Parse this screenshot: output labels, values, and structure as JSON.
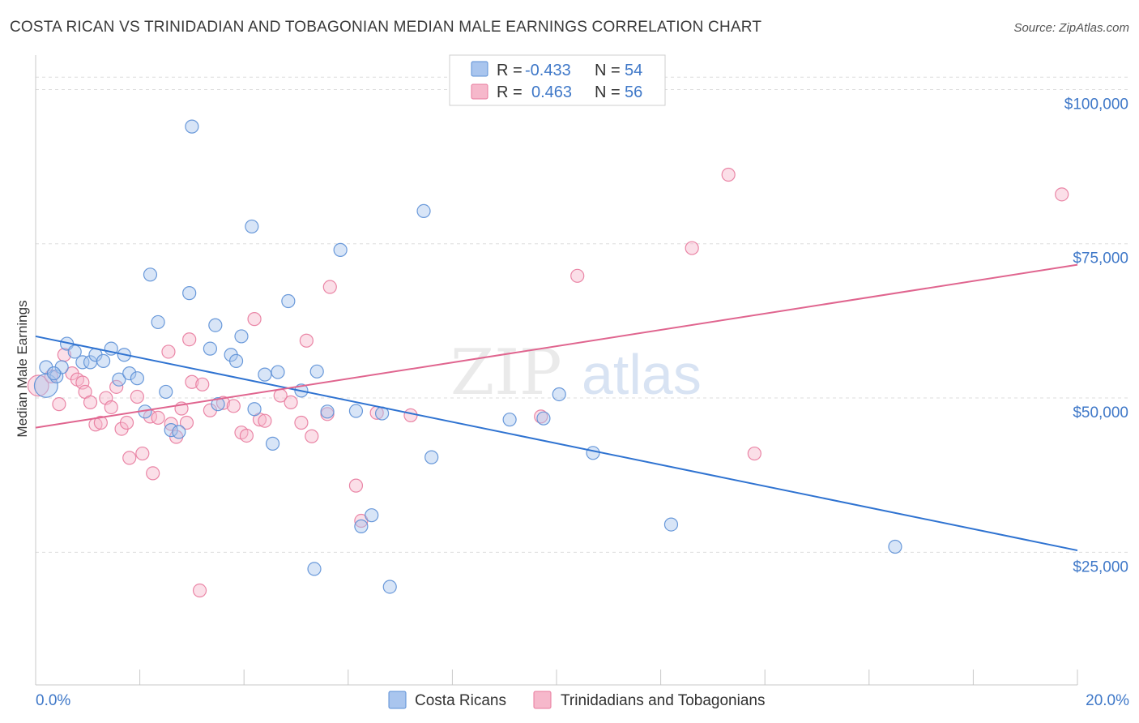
{
  "title": "COSTA RICAN VS TRINIDADIAN AND TOBAGONIAN MEDIAN MALE EARNINGS CORRELATION CHART",
  "source": "Source: ZipAtlas.com",
  "watermark": {
    "zip": "ZIP",
    "atlas": "atlas"
  },
  "colors": {
    "blue_fill": "#a9c5ee",
    "blue_stroke": "#5b8fd6",
    "blue_line": "#2f73d1",
    "pink_fill": "#f6b8cb",
    "pink_stroke": "#e87a9d",
    "pink_line": "#e0658f",
    "tick_text": "#3f78c8",
    "grid": "#dddddd"
  },
  "legend": {
    "rows": [
      {
        "r_label": "R =",
        "r_value": "-0.433",
        "n_label": "N =",
        "n_value": "54"
      },
      {
        "r_label": "R =",
        "r_value": "0.463",
        "n_label": "N =",
        "n_value": "56"
      }
    ]
  },
  "bottom_legend": {
    "items": [
      "Costa Ricans",
      "Trinidadians and Tobagonians"
    ]
  },
  "chart_data": {
    "type": "scatter",
    "title": "COSTA RICAN VS TRINIDADIAN AND TOBAGONIAN MEDIAN MALE EARNINGS CORRELATION CHART",
    "xlabel": "",
    "ylabel": "Median Male Earnings",
    "xlim": [
      0,
      20
    ],
    "ylim": [
      3500,
      104000
    ],
    "x_tick_labels": [
      "0.0%",
      "20.0%"
    ],
    "y_ticks": [
      25000,
      50000,
      75000,
      100000
    ],
    "y_tick_labels": [
      "$25,000",
      "$50,000",
      "$75,000",
      "$100,000"
    ],
    "grid": "horizontal dashed",
    "legend_position": "top-center",
    "series": [
      {
        "name": "Costa Ricans",
        "trend": {
          "x": [
            0,
            20
          ],
          "y": [
            60000,
            25300
          ]
        },
        "points": [
          [
            0.2,
            52000,
            1.8
          ],
          [
            0.2,
            55000,
            1
          ],
          [
            0.4,
            53500,
            1
          ],
          [
            0.5,
            55000,
            1
          ],
          [
            0.6,
            58800,
            1
          ],
          [
            0.75,
            57500,
            1
          ],
          [
            0.9,
            55800,
            1
          ],
          [
            1.05,
            55800,
            1
          ],
          [
            1.15,
            57000,
            1
          ],
          [
            1.3,
            56000,
            1
          ],
          [
            1.45,
            58000,
            1
          ],
          [
            1.6,
            53000,
            1
          ],
          [
            1.7,
            57000,
            1
          ],
          [
            1.8,
            54000,
            1
          ],
          [
            1.95,
            53200,
            1
          ],
          [
            2.1,
            47800,
            1
          ],
          [
            2.2,
            70000,
            1
          ],
          [
            2.35,
            62300,
            1
          ],
          [
            2.5,
            51000,
            1
          ],
          [
            2.6,
            44800,
            1
          ],
          [
            2.75,
            44500,
            1
          ],
          [
            2.95,
            67000,
            1
          ],
          [
            3.0,
            94000,
            1
          ],
          [
            3.35,
            58000,
            1
          ],
          [
            3.45,
            61800,
            1
          ],
          [
            3.5,
            49000,
            1
          ],
          [
            3.75,
            57000,
            1
          ],
          [
            3.85,
            56000,
            1
          ],
          [
            3.95,
            60000,
            1
          ],
          [
            4.15,
            77800,
            1
          ],
          [
            4.2,
            48200,
            1
          ],
          [
            4.4,
            53800,
            1
          ],
          [
            4.55,
            42600,
            1
          ],
          [
            4.65,
            54200,
            1
          ],
          [
            4.85,
            65700,
            1
          ],
          [
            5.1,
            51200,
            1
          ],
          [
            5.35,
            22300,
            1
          ],
          [
            5.4,
            54300,
            1
          ],
          [
            5.6,
            47800,
            1
          ],
          [
            5.85,
            74000,
            1
          ],
          [
            6.15,
            47900,
            1
          ],
          [
            6.25,
            29200,
            1
          ],
          [
            6.45,
            31000,
            1
          ],
          [
            6.65,
            47500,
            1
          ],
          [
            6.8,
            19400,
            1
          ],
          [
            7.45,
            80300,
            1
          ],
          [
            7.6,
            40400,
            1
          ],
          [
            9.1,
            46500,
            1
          ],
          [
            9.75,
            46700,
            1
          ],
          [
            10.05,
            50600,
            1
          ],
          [
            10.7,
            41100,
            1
          ],
          [
            12.2,
            29500,
            1
          ],
          [
            16.5,
            25900,
            1
          ],
          [
            0.35,
            54000,
            1
          ]
        ]
      },
      {
        "name": "Trinidadians and Tobagonians",
        "trend": {
          "x": [
            0,
            20
          ],
          "y": [
            45200,
            71600
          ]
        },
        "points": [
          [
            0.05,
            52000,
            1.6
          ],
          [
            0.3,
            53500,
            1
          ],
          [
            0.45,
            49000,
            1
          ],
          [
            0.55,
            57000,
            1
          ],
          [
            0.7,
            54000,
            1
          ],
          [
            0.8,
            53000,
            1
          ],
          [
            0.9,
            52500,
            1
          ],
          [
            0.95,
            51000,
            1
          ],
          [
            1.05,
            49300,
            1
          ],
          [
            1.15,
            45700,
            1
          ],
          [
            1.25,
            46000,
            1
          ],
          [
            1.35,
            50000,
            1
          ],
          [
            1.45,
            48500,
            1
          ],
          [
            1.55,
            51800,
            1
          ],
          [
            1.65,
            45000,
            1
          ],
          [
            1.75,
            46000,
            1
          ],
          [
            1.8,
            40300,
            1
          ],
          [
            1.95,
            50200,
            1
          ],
          [
            2.05,
            41000,
            1
          ],
          [
            2.2,
            47000,
            1
          ],
          [
            2.25,
            37800,
            1
          ],
          [
            2.35,
            46800,
            1
          ],
          [
            2.55,
            57500,
            1
          ],
          [
            2.6,
            45800,
            1
          ],
          [
            2.7,
            43700,
            1
          ],
          [
            2.8,
            48300,
            1
          ],
          [
            2.9,
            46000,
            1
          ],
          [
            2.95,
            59500,
            1
          ],
          [
            3.0,
            52600,
            1
          ],
          [
            3.15,
            18800,
            1
          ],
          [
            3.2,
            52200,
            1
          ],
          [
            3.35,
            48000,
            1
          ],
          [
            3.6,
            49200,
            1
          ],
          [
            3.8,
            48700,
            1
          ],
          [
            3.95,
            44400,
            1
          ],
          [
            4.05,
            43900,
            1
          ],
          [
            4.2,
            62800,
            1
          ],
          [
            4.3,
            46500,
            1
          ],
          [
            4.4,
            46300,
            1
          ],
          [
            4.7,
            50400,
            1
          ],
          [
            4.9,
            49300,
            1
          ],
          [
            5.1,
            46000,
            1
          ],
          [
            5.2,
            59300,
            1
          ],
          [
            5.3,
            43800,
            1
          ],
          [
            5.6,
            47400,
            1
          ],
          [
            5.65,
            68000,
            1
          ],
          [
            6.15,
            35800,
            1
          ],
          [
            6.25,
            30100,
            1
          ],
          [
            6.55,
            47600,
            1
          ],
          [
            7.2,
            47200,
            1
          ],
          [
            10.4,
            69800,
            1
          ],
          [
            12.6,
            74300,
            1
          ],
          [
            13.3,
            86200,
            1
          ],
          [
            13.8,
            41000,
            1
          ],
          [
            19.7,
            83000,
            1
          ],
          [
            9.7,
            47000,
            1
          ]
        ]
      }
    ]
  }
}
